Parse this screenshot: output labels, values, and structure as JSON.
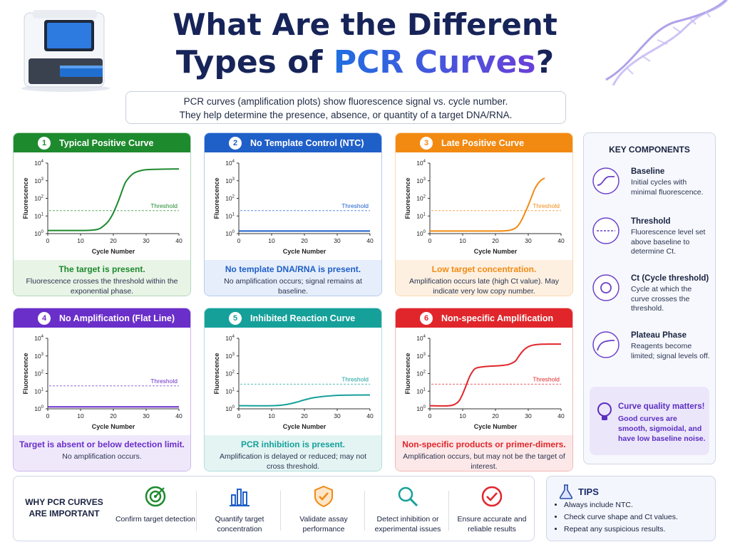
{
  "header": {
    "title_line1": "What Are the Different",
    "title_line2_prefix": "Types of ",
    "title_line2_highlight": "PCR Curves",
    "title_line2_suffix": "?",
    "intro_line1": "PCR curves (amplification plots) show fluorescence signal vs. cycle number.",
    "intro_line2": "They help determine the presence, absence, or quantity of a target DNA/RNA."
  },
  "cards": [
    {
      "num": "1",
      "title": "Typical Positive Curve",
      "color": "#1e8a2e",
      "light": "#e8f4e6",
      "footer_title": "The target is present.",
      "footer_desc": "Fluorescence crosses the threshold within the exponential phase.",
      "threshold": "Threshold",
      "xlabel": "Cycle Number",
      "ylabel": "Fluorescence"
    },
    {
      "num": "2",
      "title": "No Template Control (NTC)",
      "color": "#1f5fc8",
      "light": "#e6eefb",
      "footer_title": "No template DNA/RNA is present.",
      "footer_desc": "No amplification occurs; signal remains at baseline.",
      "threshold": "Threshold",
      "xlabel": "Cycle Number",
      "ylabel": "Fluorescence"
    },
    {
      "num": "3",
      "title": "Late Positive Curve",
      "color": "#f28a12",
      "light": "#fdf0e1",
      "footer_title": "Low target concentration.",
      "footer_desc": "Amplification occurs late (high Ct value). May indicate very low copy number.",
      "threshold": "Threshold",
      "xlabel": "Cycle Number",
      "ylabel": "Fluorescence"
    },
    {
      "num": "4",
      "title": "No Amplification (Flat Line)",
      "color": "#6a2ec9",
      "light": "#efe8fb",
      "footer_title": "Target is absent or below detection limit.",
      "footer_desc": "No amplification occurs.",
      "threshold": "Threshold",
      "xlabel": "Cycle Number",
      "ylabel": "Fluorescence"
    },
    {
      "num": "5",
      "title": "Inhibited Reaction Curve",
      "color": "#16a09a",
      "light": "#e3f4f3",
      "footer_title": "PCR inhibition is present.",
      "footer_desc": "Amplification is delayed or reduced; may not cross threshold.",
      "threshold": "Threshold",
      "xlabel": "Cycle Number",
      "ylabel": "Fluorescence"
    },
    {
      "num": "6",
      "title": "Non-specific Amplification",
      "color": "#e0262b",
      "light": "#fce8e8",
      "footer_title": "Non-specific products or primer-dimers.",
      "footer_desc": "Amplification occurs, but may not be the target of interest.",
      "threshold": "Threshold",
      "xlabel": "Cycle Number",
      "ylabel": "Fluorescence"
    }
  ],
  "chart_data": [
    {
      "type": "line",
      "title": "Typical Positive Curve",
      "xlabel": "Cycle Number",
      "ylabel": "Fluorescence",
      "xlim": [
        0,
        40
      ],
      "ylim": [
        1,
        10000
      ],
      "log_y": true,
      "x_ticks": [
        "0",
        "10",
        "20",
        "30",
        "40"
      ],
      "threshold": 20,
      "series": [
        {
          "x": [
            0,
            10,
            14,
            16,
            18,
            19,
            20,
            21,
            22,
            23,
            24,
            26,
            28,
            30,
            34,
            38,
            40
          ],
          "values": [
            1.5,
            1.5,
            1.6,
            2,
            4,
            7,
            15,
            40,
            120,
            400,
            1000,
            2500,
            3600,
            4200,
            4500,
            4600,
            4600
          ]
        }
      ]
    },
    {
      "type": "line",
      "title": "No Template Control (NTC)",
      "xlabel": "Cycle Number",
      "ylabel": "Fluorescence",
      "xlim": [
        0,
        40
      ],
      "ylim": [
        1,
        10000
      ],
      "log_y": true,
      "x_ticks": [
        "0",
        "10",
        "20",
        "30",
        "40"
      ],
      "threshold": 20,
      "series": [
        {
          "x": [
            0,
            10,
            20,
            30,
            40
          ],
          "values": [
            1.4,
            1.4,
            1.4,
            1.4,
            1.4
          ]
        }
      ]
    },
    {
      "type": "line",
      "title": "Late Positive Curve",
      "xlabel": "Cycle Number",
      "ylabel": "Fluorescence",
      "xlim": [
        0,
        40
      ],
      "ylim": [
        1,
        10000
      ],
      "log_y": true,
      "x_ticks": [
        "0",
        "10",
        "20",
        "30",
        "40"
      ],
      "threshold": 20,
      "series": [
        {
          "x": [
            0,
            10,
            20,
            24,
            26,
            27,
            28,
            29,
            30,
            31,
            32,
            33,
            34,
            35
          ],
          "values": [
            1.4,
            1.4,
            1.4,
            1.5,
            2,
            3,
            6,
            15,
            40,
            120,
            350,
            700,
            1100,
            1400
          ]
        }
      ]
    },
    {
      "type": "line",
      "title": "No Amplification (Flat Line)",
      "xlabel": "Cycle Number",
      "ylabel": "Fluorescence",
      "xlim": [
        0,
        40
      ],
      "ylim": [
        1,
        10000
      ],
      "log_y": true,
      "x_ticks": [
        "0",
        "10",
        "20",
        "30",
        "40"
      ],
      "threshold": 20,
      "series": [
        {
          "x": [
            0,
            10,
            20,
            30,
            40
          ],
          "values": [
            1.3,
            1.3,
            1.3,
            1.3,
            1.3
          ]
        }
      ]
    },
    {
      "type": "line",
      "title": "Inhibited Reaction Curve",
      "xlabel": "Cycle Number",
      "ylabel": "Fluorescence",
      "xlim": [
        0,
        40
      ],
      "ylim": [
        1,
        10000
      ],
      "log_y": true,
      "x_ticks": [
        "0",
        "10",
        "20",
        "30",
        "40"
      ],
      "threshold": 25,
      "series": [
        {
          "x": [
            0,
            10,
            14,
            16,
            18,
            20,
            22,
            24,
            26,
            28,
            30,
            34,
            38,
            40
          ],
          "values": [
            1.5,
            1.5,
            1.7,
            2,
            2.5,
            3.2,
            4,
            4.6,
            5.1,
            5.5,
            5.8,
            6,
            6.1,
            6.1
          ]
        }
      ]
    },
    {
      "type": "line",
      "title": "Non-specific Amplification",
      "xlabel": "Cycle Number",
      "ylabel": "Fluorescence",
      "xlim": [
        0,
        40
      ],
      "ylim": [
        1,
        10000
      ],
      "log_y": true,
      "x_ticks": [
        "0",
        "10",
        "20",
        "30",
        "40"
      ],
      "threshold": 25,
      "series": [
        {
          "x": [
            0,
            6,
            8,
            9,
            10,
            11,
            12,
            13,
            14,
            16,
            18,
            20,
            22,
            24,
            26,
            27,
            28,
            29,
            30,
            31,
            32,
            34,
            36,
            38,
            40
          ],
          "values": [
            1.5,
            1.5,
            2,
            3,
            7,
            20,
            60,
            130,
            200,
            240,
            260,
            270,
            290,
            330,
            500,
            900,
            1600,
            2500,
            3300,
            3900,
            4300,
            4600,
            4700,
            4700,
            4700
          ]
        }
      ]
    }
  ],
  "sidebar": {
    "title": "KEY COMPONENTS",
    "items": [
      {
        "title": "Baseline",
        "desc": "Initial cycles with minimal fluorescence.",
        "icon": "baseline-icon"
      },
      {
        "title": "Threshold",
        "desc": "Fluorescence level set above baseline to determine Ct.",
        "icon": "threshold-icon"
      },
      {
        "title": "Ct (Cycle threshold)",
        "desc": "Cycle at which the curve crosses the threshold.",
        "icon": "ct-icon"
      },
      {
        "title": "Plateau Phase",
        "desc": "Reagents become limited; signal levels off.",
        "icon": "plateau-icon"
      }
    ],
    "quality_title": "Curve quality matters!",
    "quality_desc": "Good curves are smooth, sigmoidal, and have low baseline noise."
  },
  "why": {
    "title": "WHY PCR CURVES ARE IMPORTANT",
    "items": [
      {
        "label": "Confirm target detection",
        "icon": "target-icon",
        "color": "#1e8a2e"
      },
      {
        "label": "Quantify target concentration",
        "icon": "bar-chart-icon",
        "color": "#1f5fc8"
      },
      {
        "label": "Validate assay performance",
        "icon": "shield-check-icon",
        "color": "#f28a12"
      },
      {
        "label": "Detect inhibition or experimental issues",
        "icon": "magnifier-icon",
        "color": "#16a09a"
      },
      {
        "label": "Ensure accurate and reliable results",
        "icon": "check-circle-icon",
        "color": "#e0262b"
      }
    ]
  },
  "tips": {
    "title": "TIPS",
    "items": [
      "Always include NTC.",
      "Check curve shape and Ct values.",
      "Repeat any suspicious results."
    ]
  }
}
